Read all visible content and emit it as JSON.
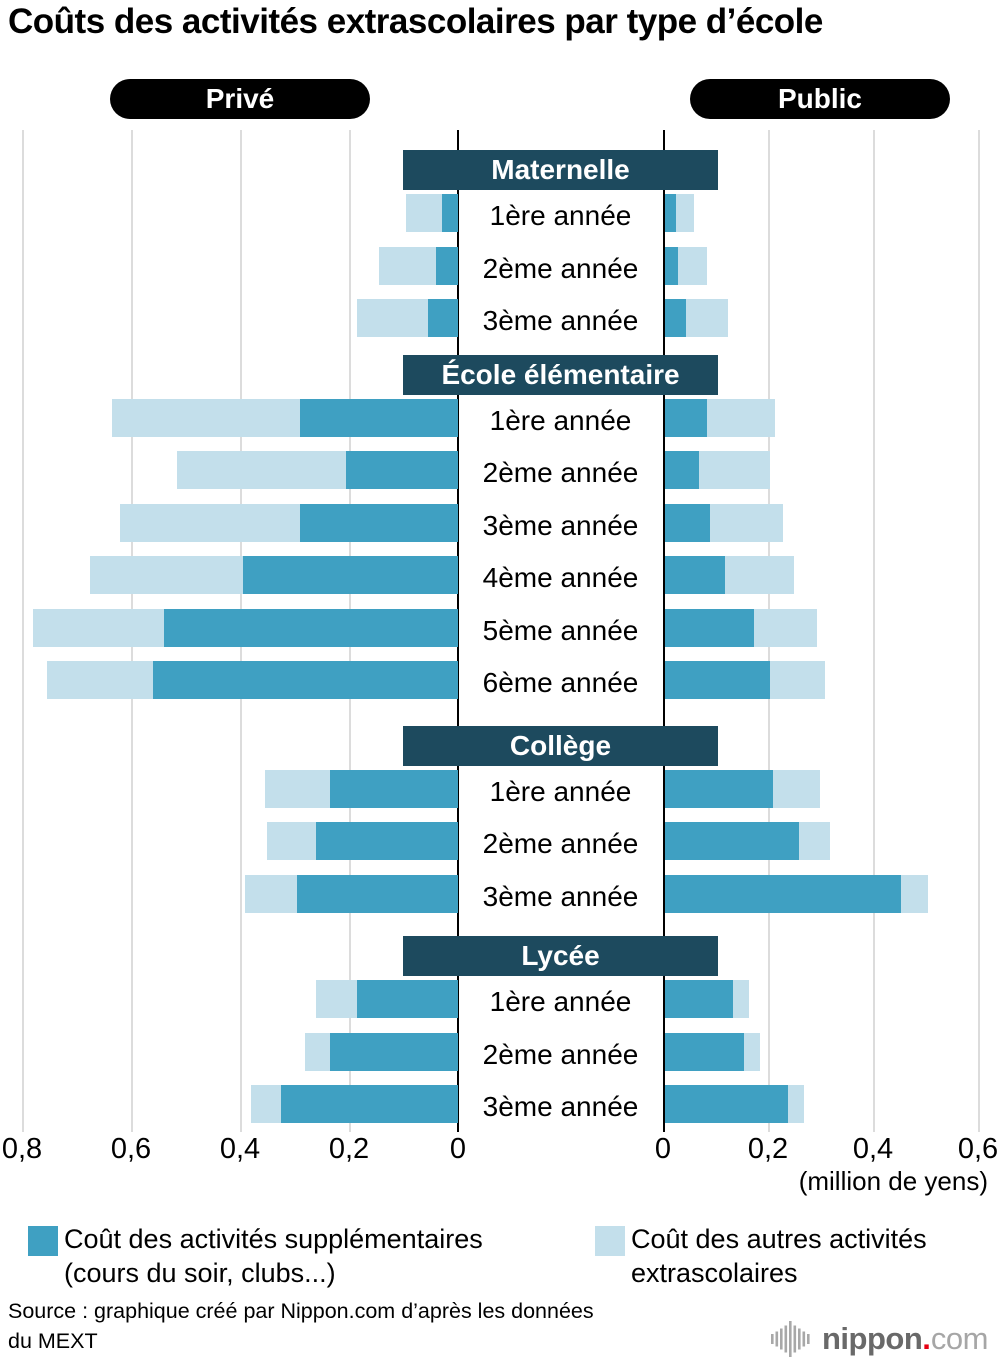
{
  "title": "Coûts des activités extrascolaires par type d’école",
  "columns": {
    "left": "Privé",
    "right": "Public"
  },
  "axis": {
    "left_ticks": [
      "0,8",
      "0,6",
      "0,4",
      "0,2",
      "0"
    ],
    "right_ticks": [
      "0",
      "0,2",
      "0,4",
      "0,6"
    ],
    "unit": "(million de yens)"
  },
  "legend": [
    {
      "line1": "Coût des activités supplémentaires",
      "line2": "(cours du soir, clubs...)",
      "color": "#3fa0c2"
    },
    {
      "line1": "Coût des autres activités",
      "line2": "extrascolaires",
      "color": "#c3dfeb"
    }
  ],
  "source": {
    "line1": "Source : graphique créé par Nippon.com d’après les données",
    "line2": "du MEXT"
  },
  "logo": {
    "name": "nippon",
    "dot": ".",
    "tld": "com"
  },
  "colors": {
    "bar-dark": "#3fa0c2",
    "bar-light": "#c3dfeb",
    "band": "#1d4a5e",
    "pill": "#000000",
    "logo-dot": "#e60012"
  },
  "chart_data": {
    "type": "bar",
    "variant": "diverging-stacked-pyramid",
    "title": "Coûts des activités extrascolaires par type d’école",
    "unit": "million de yens",
    "sides": [
      "Privé",
      "Public"
    ],
    "series": [
      "Coût des activités supplémentaires (cours du soir, clubs...)",
      "Coût des autres activités extrascolaires"
    ],
    "axis": {
      "left_max": 0.8,
      "right_max": 0.6,
      "tick_step": 0.2,
      "grid": true
    },
    "legend_position": "bottom",
    "sections": [
      {
        "name": "Maternelle",
        "rows": [
          {
            "label": "1ère année",
            "prive": {
              "supplementaires": 0.03,
              "autres": 0.065
            },
            "public": {
              "supplementaires": 0.02,
              "autres": 0.035
            }
          },
          {
            "label": "2ème année",
            "prive": {
              "supplementaires": 0.04,
              "autres": 0.105
            },
            "public": {
              "supplementaires": 0.025,
              "autres": 0.055
            }
          },
          {
            "label": "3ème année",
            "prive": {
              "supplementaires": 0.055,
              "autres": 0.13
            },
            "public": {
              "supplementaires": 0.04,
              "autres": 0.08
            }
          }
        ]
      },
      {
        "name": "École élémentaire",
        "rows": [
          {
            "label": "1ère année",
            "prive": {
              "supplementaires": 0.29,
              "autres": 0.345
            },
            "public": {
              "supplementaires": 0.08,
              "autres": 0.13
            }
          },
          {
            "label": "2ème année",
            "prive": {
              "supplementaires": 0.205,
              "autres": 0.31
            },
            "public": {
              "supplementaires": 0.065,
              "autres": 0.135
            }
          },
          {
            "label": "3ème année",
            "prive": {
              "supplementaires": 0.29,
              "autres": 0.33
            },
            "public": {
              "supplementaires": 0.085,
              "autres": 0.14
            }
          },
          {
            "label": "4ème année",
            "prive": {
              "supplementaires": 0.395,
              "autres": 0.28
            },
            "public": {
              "supplementaires": 0.115,
              "autres": 0.13
            }
          },
          {
            "label": "5ème année",
            "prive": {
              "supplementaires": 0.54,
              "autres": 0.24
            },
            "public": {
              "supplementaires": 0.17,
              "autres": 0.12
            }
          },
          {
            "label": "6ème année",
            "prive": {
              "supplementaires": 0.56,
              "autres": 0.195
            },
            "public": {
              "supplementaires": 0.2,
              "autres": 0.105
            }
          }
        ]
      },
      {
        "name": "Collège",
        "rows": [
          {
            "label": "1ère année",
            "prive": {
              "supplementaires": 0.235,
              "autres": 0.12
            },
            "public": {
              "supplementaires": 0.205,
              "autres": 0.09
            }
          },
          {
            "label": "2ème année",
            "prive": {
              "supplementaires": 0.26,
              "autres": 0.09
            },
            "public": {
              "supplementaires": 0.255,
              "autres": 0.06
            }
          },
          {
            "label": "3ème année",
            "prive": {
              "supplementaires": 0.295,
              "autres": 0.095
            },
            "public": {
              "supplementaires": 0.45,
              "autres": 0.05
            }
          }
        ]
      },
      {
        "name": "Lycée",
        "rows": [
          {
            "label": "1ère année",
            "prive": {
              "supplementaires": 0.185,
              "autres": 0.075
            },
            "public": {
              "supplementaires": 0.13,
              "autres": 0.03
            }
          },
          {
            "label": "2ème année",
            "prive": {
              "supplementaires": 0.235,
              "autres": 0.045
            },
            "public": {
              "supplementaires": 0.15,
              "autres": 0.03
            }
          },
          {
            "label": "3ème année",
            "prive": {
              "supplementaires": 0.325,
              "autres": 0.055
            },
            "public": {
              "supplementaires": 0.235,
              "autres": 0.03
            }
          }
        ]
      }
    ]
  }
}
